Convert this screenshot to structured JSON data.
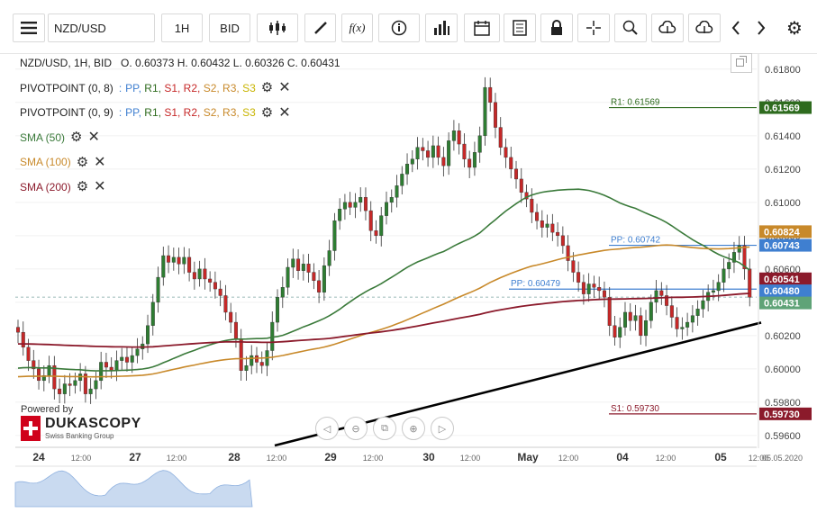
{
  "toolbar": {
    "symbol": "NZD/USD",
    "timeframe": "1H",
    "price_type": "BID"
  },
  "legend": {
    "ohlc_line": "NZD/USD, 1H, BID",
    "ohlc_values": "O. 0.60373 H. 0.60432 L. 0.60326 C. 0.60431",
    "pivot1_name": "PIVOTPOINT (0, 8)",
    "pivot2_name": "PIVOTPOINT (0, 9)",
    "pivot_sep": ":",
    "pivot_levels": [
      "PP",
      "R1",
      "S1",
      "R2",
      "S2",
      "R3",
      "S3"
    ],
    "sma50": "SMA (50)",
    "sma100": "SMA (100)",
    "sma200": "SMA (200)"
  },
  "branding": {
    "powered": "Powered by",
    "logo_text": "DUKASCOPY",
    "logo_sub": "Swiss Banking Group"
  },
  "colors": {
    "up": "#2e7d32",
    "down": "#c62828",
    "sma50": "#3a7a3a",
    "sma100": "#c8892a",
    "sma200": "#8b1a2b",
    "pp": "#3f7fd0",
    "r1": "#2e6b1e",
    "s1": "#8b1a2b",
    "current": "#5fa377",
    "trendline": "#000000"
  },
  "chart_data": {
    "type": "candlestick",
    "symbol": "NZD/USD",
    "interval": "1H",
    "ylim": [
      0.5954,
      0.6188
    ],
    "y_ticks": [
      "0.61800",
      "0.61600",
      "0.61400",
      "0.61200",
      "0.61000",
      "0.60800",
      "0.60600",
      "0.60400",
      "0.60200",
      "0.60000",
      "0.59800",
      "0.59600"
    ],
    "x_ticks": [
      "24",
      "12:00",
      "27",
      "12:00",
      "28",
      "12:00",
      "29",
      "12:00",
      "30",
      "12:00",
      "May",
      "12:00",
      "04",
      "12:00",
      "05",
      "12:00"
    ],
    "x_end_label": "05.05.2020",
    "last_close": 0.60431,
    "ohlc_last": {
      "o": 0.60373,
      "h": 0.60432,
      "l": 0.60326,
      "c": 0.60431
    },
    "levels": [
      {
        "name": "R1",
        "label": "R1: 0.61569",
        "value": 0.61569,
        "tag": "0.61569"
      },
      {
        "name": "PP",
        "label": "PP: 0.60742",
        "value": 0.60742,
        "tag": "0.60743"
      },
      {
        "name": "PP",
        "label": "PP: 0.60479",
        "value": 0.60479,
        "tag": "0.60480"
      },
      {
        "name": "S1",
        "label": "S1: 0.59730",
        "value": 0.5973,
        "tag": "0.59730"
      }
    ],
    "price_tags": [
      {
        "series": "SMA (100)",
        "value": "0.60824"
      },
      {
        "series": "SMA (200)",
        "value": "0.60541"
      },
      {
        "series": "Close",
        "value": "0.60431"
      }
    ],
    "candles_close": [
      0.6022,
      0.6013,
      0.6005,
      0.6,
      0.5993,
      0.5996,
      0.6002,
      0.5988,
      0.5985,
      0.5991,
      0.599,
      0.5993,
      0.5997,
      0.5985,
      0.5988,
      0.5993,
      0.6004,
      0.6001,
      0.5999,
      0.6005,
      0.6007,
      0.6004,
      0.6008,
      0.6012,
      0.6015,
      0.6026,
      0.604,
      0.6055,
      0.6068,
      0.6064,
      0.6067,
      0.6063,
      0.6067,
      0.6058,
      0.6054,
      0.606,
      0.6054,
      0.6052,
      0.6048,
      0.6044,
      0.6034,
      0.6028,
      0.6018,
      0.5999,
      0.6002,
      0.6008,
      0.6004,
      0.6002,
      0.6011,
      0.6028,
      0.6043,
      0.6049,
      0.6061,
      0.6066,
      0.6059,
      0.6063,
      0.6058,
      0.6053,
      0.6046,
      0.6062,
      0.6071,
      0.6089,
      0.6096,
      0.61,
      0.6097,
      0.61,
      0.6103,
      0.6095,
      0.6083,
      0.608,
      0.6092,
      0.61,
      0.6103,
      0.611,
      0.6117,
      0.6123,
      0.6126,
      0.6133,
      0.6131,
      0.6127,
      0.6134,
      0.6127,
      0.6122,
      0.6137,
      0.6143,
      0.6135,
      0.6126,
      0.6121,
      0.613,
      0.614,
      0.6169,
      0.616,
      0.6145,
      0.6133,
      0.6127,
      0.612,
      0.6114,
      0.6106,
      0.6102,
      0.6094,
      0.6089,
      0.6085,
      0.6087,
      0.6082,
      0.608,
      0.6074,
      0.6065,
      0.6058,
      0.6052,
      0.6045,
      0.6051,
      0.6049,
      0.6047,
      0.6043,
      0.6026,
      0.6019,
      0.6025,
      0.6034,
      0.6029,
      0.6032,
      0.602,
      0.6029,
      0.604,
      0.6047,
      0.6044,
      0.6038,
      0.6031,
      0.6024,
      0.6025,
      0.6028,
      0.6032,
      0.6036,
      0.6041,
      0.6046,
      0.6047,
      0.6052,
      0.606,
      0.6064,
      0.607,
      0.6074,
      0.606,
      0.6043
    ],
    "series": [
      {
        "name": "SMA (50)",
        "shape": "ma"
      },
      {
        "name": "SMA (100)",
        "shape": "ma"
      },
      {
        "name": "SMA (200)",
        "shape": "ma"
      }
    ]
  }
}
